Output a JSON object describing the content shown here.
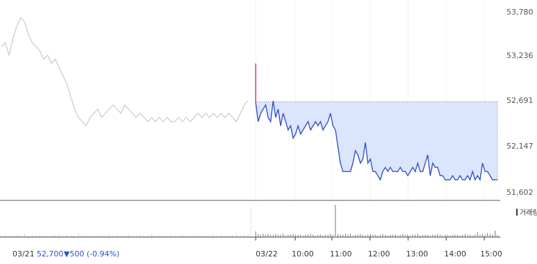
{
  "chart_data": {
    "type": "line",
    "y_ticks": [
      "53,780",
      "53,236",
      "52,691",
      "52,147",
      "51,602"
    ],
    "ylim": [
      51602,
      53780
    ],
    "reference_price": 52691,
    "x_ticks": [
      "03/21",
      "03/22",
      "10:00",
      "11:00",
      "12:00",
      "13:00",
      "14:00",
      "15:00"
    ],
    "prev_day": {
      "label": "03/21",
      "values": [
        53350,
        53400,
        53250,
        53450,
        53600,
        53700,
        53650,
        53500,
        53400,
        53350,
        53300,
        53200,
        53250,
        53150,
        53200,
        53100,
        53000,
        52900,
        52750,
        52600,
        52500,
        52450,
        52400,
        52500,
        52550,
        52600,
        52500,
        52550,
        52600,
        52650,
        52600,
        52550,
        52650,
        52600,
        52550,
        52500,
        52550,
        52500,
        52450,
        52500,
        52450,
        52500,
        52450,
        52500,
        52450,
        52450,
        52500,
        52450,
        52500,
        52450,
        52500,
        52550,
        52500,
        52550,
        52500,
        52550,
        52500,
        52550,
        52500,
        52550,
        52500,
        52450,
        52550,
        52650,
        52700
      ]
    },
    "today": {
      "open_spike": 53150,
      "values": [
        52680,
        52450,
        52550,
        52600,
        52650,
        52500,
        52450,
        52700,
        52500,
        52600,
        52400,
        52550,
        52450,
        52350,
        52400,
        52250,
        52300,
        52400,
        52300,
        52350,
        52400,
        52450,
        52350,
        52400,
        52450,
        52400,
        52450,
        52350,
        52400,
        52450,
        52550,
        52400,
        52350,
        52150,
        51950,
        51850,
        51850,
        51850,
        51850,
        51950,
        52100,
        52050,
        51950,
        52000,
        52200,
        51950,
        52000,
        51850,
        51850,
        51800,
        51750,
        51850,
        51900,
        51850,
        51900,
        51850,
        51850,
        51850,
        51900,
        51850,
        51850,
        51800,
        51850,
        51900,
        51850,
        51950,
        51850,
        51850,
        51950,
        52050,
        51800,
        51950,
        51900,
        51900,
        51800,
        51800,
        51750,
        51750,
        51750,
        51800,
        51750,
        51750,
        51800,
        51750,
        51750,
        51800,
        51750,
        51850,
        51750,
        51800,
        51750,
        51950,
        51850,
        51850,
        51800,
        51750,
        51750,
        51750
      ]
    },
    "volume_label": "거래량",
    "prev_volume": [
      1,
      2,
      1,
      1,
      2,
      1,
      3,
      1,
      2,
      1,
      1,
      2,
      1,
      1,
      2,
      3,
      1,
      2,
      1,
      1,
      4,
      1,
      2,
      1,
      1,
      2,
      1,
      1,
      3,
      1,
      2,
      1,
      1,
      2,
      1,
      1,
      2,
      1,
      1,
      3,
      1,
      2,
      1,
      1,
      2,
      1,
      1,
      2,
      1,
      1,
      2,
      1,
      1,
      2,
      1,
      3,
      1,
      2,
      1,
      1,
      2,
      4,
      1,
      2,
      3
    ],
    "today_volume": [
      6,
      3,
      2,
      3,
      2,
      3,
      2,
      2,
      3,
      2,
      2,
      3,
      1,
      2,
      2,
      3,
      2,
      2,
      2,
      1,
      2,
      2,
      3,
      2,
      1,
      2,
      2,
      1,
      2,
      2,
      3,
      2,
      38,
      3,
      2,
      2,
      3,
      2,
      3,
      1,
      2,
      2,
      3,
      2,
      1,
      2,
      3,
      2,
      2,
      1,
      2,
      3,
      2,
      1,
      2,
      2,
      2,
      1,
      2,
      3,
      2,
      2,
      1,
      2,
      2,
      3,
      1,
      2,
      2,
      2,
      1,
      2,
      2,
      3,
      2,
      1,
      2,
      2,
      1,
      2,
      2,
      2,
      1,
      2,
      3,
      2,
      2,
      1,
      2,
      5,
      2,
      3,
      2,
      4,
      3,
      2,
      7,
      2
    ]
  },
  "status": {
    "date": "03/21",
    "price": "52,700",
    "change": "▼500 (-0.94%)"
  },
  "colors": {
    "line": "#3551c9",
    "fill": "#dbe5fb",
    "prev_line": "#c9c9c9",
    "spike": "#e0334d",
    "change": "#2452c8"
  }
}
